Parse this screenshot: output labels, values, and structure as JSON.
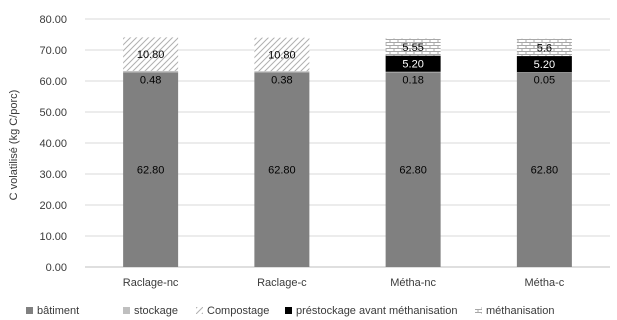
{
  "chart_data": {
    "type": "bar",
    "stacked": true,
    "categories": [
      "Raclage-nc",
      "Raclage-c",
      "Métha-nc",
      "Métha-c"
    ],
    "ylabel": "C volatilisé (kg C/porc)",
    "ylim": [
      0,
      80
    ],
    "yticks": [
      "0.00",
      "10.00",
      "20.00",
      "30.00",
      "40.00",
      "50.00",
      "60.00",
      "70.00",
      "80.00"
    ],
    "grid": true,
    "legend_position": "bottom",
    "series": [
      {
        "name": "bâtiment",
        "values": [
          62.8,
          62.8,
          62.8,
          62.8
        ],
        "labels": [
          "62.80",
          "62.80",
          "62.80",
          "62.80"
        ],
        "color": "#808080",
        "pattern": "solid"
      },
      {
        "name": "stockage",
        "values": [
          0.48,
          0.38,
          0.18,
          0.05
        ],
        "labels": [
          "0.48",
          "0.38",
          "0.18",
          "0.05"
        ],
        "color": "#bfbfbf",
        "pattern": "solid"
      },
      {
        "name": "Compostage",
        "values": [
          10.8,
          10.8,
          0,
          0
        ],
        "labels": [
          "10.80",
          "10.80",
          "",
          ""
        ],
        "color": "#bfbfbf",
        "pattern": "diagonal"
      },
      {
        "name": "préstockage avant méthanisation",
        "values": [
          0,
          0,
          5.2,
          5.2
        ],
        "labels": [
          "",
          "",
          "5.20",
          "5.20"
        ],
        "color": "#000000",
        "pattern": "solid"
      },
      {
        "name": "méthanisation",
        "values": [
          0,
          0,
          5.55,
          5.6
        ],
        "labels": [
          "",
          "",
          "5.55",
          "5.6"
        ],
        "color": "#bfbfbf",
        "pattern": "brick"
      }
    ]
  }
}
